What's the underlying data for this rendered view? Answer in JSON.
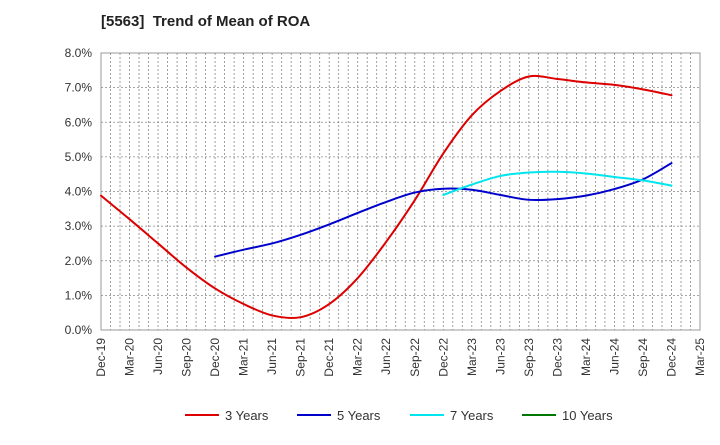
{
  "chart_data": {
    "type": "line",
    "title": "[5563]  Trend of Mean of ROA",
    "xlabel": "",
    "ylabel": "",
    "ylim": [
      0,
      8
    ],
    "y_ticks": [
      0,
      1,
      2,
      3,
      4,
      5,
      6,
      7,
      8
    ],
    "y_tick_labels": [
      "0.0%",
      "1.0%",
      "2.0%",
      "3.0%",
      "4.0%",
      "5.0%",
      "6.0%",
      "7.0%",
      "8.0%"
    ],
    "grid": true,
    "legend_position": "bottom",
    "categories": [
      "Dec-19",
      "Mar-20",
      "Jun-20",
      "Sep-20",
      "Dec-20",
      "Mar-21",
      "Jun-21",
      "Sep-21",
      "Dec-21",
      "Mar-22",
      "Jun-22",
      "Sep-22",
      "Dec-22",
      "Mar-23",
      "Jun-23",
      "Sep-23",
      "Dec-23",
      "Mar-24",
      "Jun-24",
      "Sep-24",
      "Dec-24",
      "Mar-25"
    ],
    "series": [
      {
        "name": "3 Years",
        "color": "#dd0000",
        "values": [
          3.88,
          3.2,
          2.5,
          1.8,
          1.2,
          0.75,
          0.42,
          0.37,
          0.75,
          1.5,
          2.55,
          3.75,
          5.1,
          6.2,
          6.9,
          7.32,
          7.25,
          7.15,
          7.08,
          6.95,
          6.78,
          null
        ]
      },
      {
        "name": "5 Years",
        "color": "#0000cc",
        "values": [
          null,
          null,
          null,
          null,
          2.12,
          2.32,
          2.5,
          2.75,
          3.05,
          3.38,
          3.7,
          3.97,
          4.08,
          4.05,
          3.9,
          3.76,
          3.78,
          3.88,
          4.07,
          4.35,
          4.82,
          null
        ]
      },
      {
        "name": "7 Years",
        "color": "#00e5ee",
        "values": [
          null,
          null,
          null,
          null,
          null,
          null,
          null,
          null,
          null,
          null,
          null,
          null,
          3.9,
          4.2,
          4.45,
          4.55,
          4.57,
          4.52,
          4.42,
          4.32,
          4.17,
          null
        ]
      },
      {
        "name": "10 Years",
        "color": "#007700",
        "values": [
          null,
          null,
          null,
          null,
          null,
          null,
          null,
          null,
          null,
          null,
          null,
          null,
          null,
          null,
          null,
          null,
          null,
          null,
          null,
          null,
          null,
          null
        ]
      }
    ]
  }
}
